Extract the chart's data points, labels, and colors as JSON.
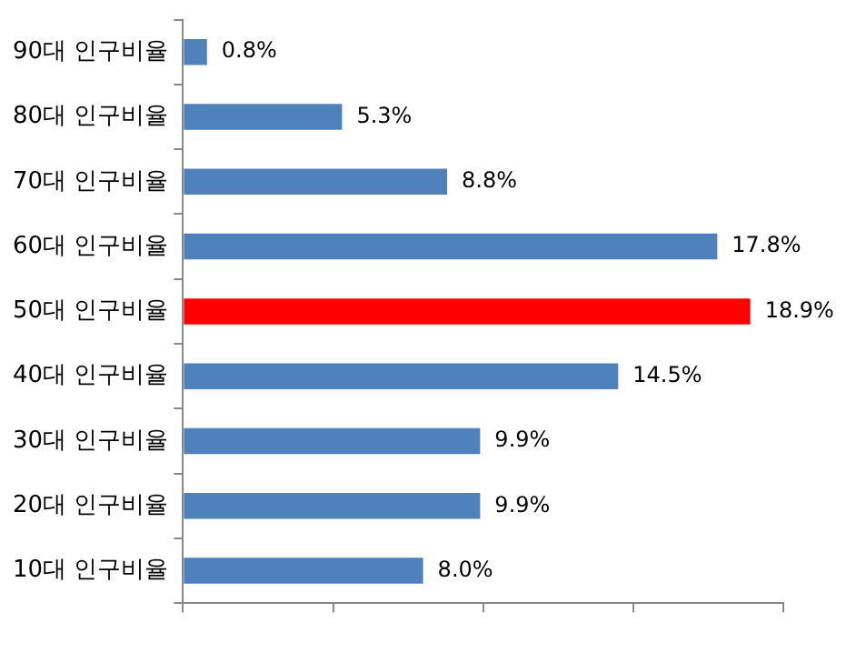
{
  "chart_data": {
    "type": "bar",
    "orientation": "horizontal",
    "categories": [
      "90대 인구비율",
      "80대 인구비율",
      "70대 인구비율",
      "60대 인구비율",
      "50대 인구비율",
      "40대 인구비율",
      "30대 인구비율",
      "20대 인구비율",
      "10대 인구비율"
    ],
    "values": [
      0.8,
      5.3,
      8.8,
      17.8,
      18.9,
      14.5,
      9.9,
      9.9,
      8.0
    ],
    "colors": [
      "#4f81bd",
      "#4f81bd",
      "#4f81bd",
      "#4f81bd",
      "#ff0000",
      "#4f81bd",
      "#4f81bd",
      "#4f81bd",
      "#4f81bd"
    ],
    "value_labels": [
      "0.8%",
      "5.3%",
      "8.8%",
      "17.8%",
      "18.9%",
      "14.5%",
      "9.9%",
      "9.9%",
      "8.0%"
    ],
    "xlim": [
      0,
      20
    ],
    "xticks": [
      {
        "value": 0,
        "label": null
      },
      {
        "value": 5,
        "label": null
      },
      {
        "value": 10,
        "label": null
      },
      {
        "value": 15,
        "label": null
      },
      {
        "value": 20,
        "label": null
      }
    ],
    "tick_labels": "y",
    "grid": false,
    "legend": false
  }
}
